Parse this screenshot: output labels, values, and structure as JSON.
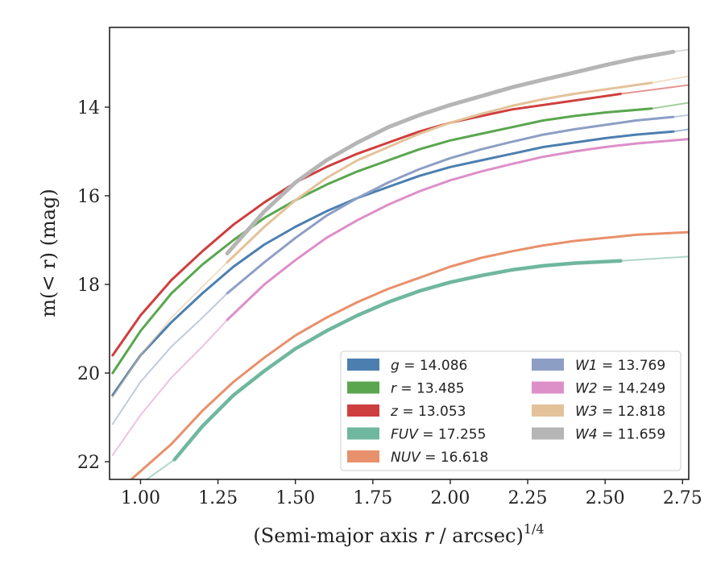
{
  "chart_data": {
    "type": "line",
    "title": "",
    "xlabel": "(Semi-major axis r / arcsec)",
    "xlabel_italic_part": "r",
    "xlabel_exponent": "1/4",
    "ylabel": "m(< r) (mag)",
    "xlim": [
      0.9,
      2.77
    ],
    "ylim": [
      22.4,
      12.2
    ],
    "y_inverted": true,
    "x_ticks": [
      1.0,
      1.25,
      1.5,
      1.75,
      2.0,
      2.25,
      2.5,
      2.75
    ],
    "x_tick_labels": [
      "1.00",
      "1.25",
      "1.50",
      "1.75",
      "2.00",
      "2.25",
      "2.50",
      "2.75"
    ],
    "y_ticks": [
      14,
      16,
      18,
      20,
      22
    ],
    "y_tick_labels": [
      "14",
      "16",
      "18",
      "20",
      "22"
    ],
    "grid": false,
    "legend_placement": "lower-right",
    "legend_columns": 2,
    "series": [
      {
        "name": "g = 14.086",
        "label_var": "g",
        "label_val": "= 14.086",
        "color": "#4c7fb0",
        "x": [
          0.91,
          1.0,
          1.1,
          1.2,
          1.3,
          1.4,
          1.5,
          1.6,
          1.7,
          1.8,
          1.9,
          2.0,
          2.1,
          2.2,
          2.3,
          2.4,
          2.5,
          2.6,
          2.72
        ],
        "y": [
          20.5,
          19.6,
          18.85,
          18.2,
          17.6,
          17.1,
          16.7,
          16.35,
          16.05,
          15.8,
          15.55,
          15.35,
          15.2,
          15.05,
          14.9,
          14.8,
          14.7,
          14.62,
          14.55
        ],
        "ext_x": [
          2.72,
          2.77
        ],
        "ext_y": [
          14.55,
          14.5
        ]
      },
      {
        "name": "r = 13.485",
        "label_var": "r",
        "label_val": "= 13.485",
        "color": "#5aa64f",
        "x": [
          0.91,
          1.0,
          1.1,
          1.2,
          1.3,
          1.4,
          1.5,
          1.6,
          1.7,
          1.8,
          1.9,
          2.0,
          2.1,
          2.2,
          2.3,
          2.4,
          2.5,
          2.65
        ],
        "y": [
          20.0,
          19.05,
          18.2,
          17.55,
          17.0,
          16.5,
          16.1,
          15.75,
          15.45,
          15.2,
          14.95,
          14.75,
          14.6,
          14.45,
          14.3,
          14.2,
          14.12,
          14.03
        ],
        "ext_x": [
          2.65,
          2.77
        ],
        "ext_y": [
          14.03,
          13.9
        ]
      },
      {
        "name": "z = 13.053",
        "label_var": "z",
        "label_val": "= 13.053",
        "color": "#cf3e3e",
        "x": [
          0.91,
          1.0,
          1.1,
          1.2,
          1.3,
          1.4,
          1.5,
          1.6,
          1.7,
          1.8,
          1.9,
          2.0,
          2.1,
          2.2,
          2.3,
          2.4,
          2.5,
          2.55
        ],
        "y": [
          19.6,
          18.7,
          17.9,
          17.25,
          16.65,
          16.15,
          15.7,
          15.35,
          15.05,
          14.8,
          14.55,
          14.35,
          14.2,
          14.05,
          13.95,
          13.85,
          13.75,
          13.7
        ],
        "ext_x": [
          2.55,
          2.77
        ],
        "ext_y": [
          13.7,
          13.5
        ]
      },
      {
        "name": "FUV = 17.255",
        "label_var": "FUV",
        "label_val": "= 17.255",
        "color": "#6fb79f",
        "x": [
          1.11,
          1.2,
          1.3,
          1.4,
          1.5,
          1.6,
          1.7,
          1.8,
          1.9,
          2.0,
          2.1,
          2.2,
          2.3,
          2.4,
          2.55
        ],
        "y": [
          21.95,
          21.2,
          20.5,
          19.95,
          19.45,
          19.05,
          18.7,
          18.4,
          18.15,
          17.95,
          17.8,
          17.67,
          17.58,
          17.52,
          17.47
        ],
        "ext_x": [
          2.55,
          2.77
        ],
        "ext_y": [
          17.47,
          17.37
        ],
        "pre_x": [
          1.02,
          1.11
        ],
        "pre_y": [
          22.4,
          21.95
        ]
      },
      {
        "name": "NUV = 16.618",
        "label_var": "NUV",
        "label_val": "= 16.618",
        "color": "#e8906c",
        "x": [
          0.97,
          1.1,
          1.2,
          1.3,
          1.4,
          1.5,
          1.6,
          1.7,
          1.8,
          1.9,
          2.0,
          2.1,
          2.2,
          2.3,
          2.4,
          2.5,
          2.6,
          2.77
        ],
        "y": [
          22.4,
          21.6,
          20.85,
          20.2,
          19.65,
          19.15,
          18.75,
          18.4,
          18.1,
          17.85,
          17.6,
          17.4,
          17.25,
          17.12,
          17.02,
          16.95,
          16.88,
          16.82
        ]
      },
      {
        "name": "W1 = 13.769",
        "label_var": "W1",
        "label_val": "= 13.769",
        "color": "#8d9ec5",
        "x": [
          1.28,
          1.4,
          1.5,
          1.6,
          1.7,
          1.8,
          1.9,
          2.0,
          2.1,
          2.2,
          2.3,
          2.4,
          2.5,
          2.6,
          2.72
        ],
        "y": [
          18.2,
          17.5,
          16.95,
          16.45,
          16.05,
          15.7,
          15.4,
          15.15,
          14.95,
          14.78,
          14.62,
          14.5,
          14.4,
          14.3,
          14.22
        ],
        "pre_x": [
          0.91,
          1.0,
          1.1,
          1.2,
          1.28
        ],
        "pre_y": [
          21.15,
          20.2,
          19.4,
          18.75,
          18.2
        ],
        "ext_x": [
          2.72,
          2.77
        ],
        "ext_y": [
          14.22,
          14.18
        ]
      },
      {
        "name": "W2 = 14.249",
        "label_var": "W2",
        "label_val": "= 14.249",
        "color": "#dd8fc8",
        "x": [
          1.28,
          1.4,
          1.5,
          1.6,
          1.7,
          1.8,
          1.9,
          2.0,
          2.1,
          2.2,
          2.3,
          2.4,
          2.5,
          2.6,
          2.77
        ],
        "y": [
          18.8,
          18.0,
          17.45,
          16.95,
          16.55,
          16.2,
          15.9,
          15.65,
          15.45,
          15.28,
          15.12,
          15.0,
          14.9,
          14.82,
          14.72
        ],
        "pre_x": [
          0.91,
          1.0,
          1.1,
          1.2,
          1.28
        ],
        "pre_y": [
          21.85,
          20.95,
          20.1,
          19.4,
          18.8
        ]
      },
      {
        "name": "W3 = 12.818",
        "label_var": "W3",
        "label_val": "= 12.818",
        "color": "#e3c29a",
        "x": [
          1.28,
          1.4,
          1.5,
          1.6,
          1.7,
          1.8,
          1.9,
          2.0,
          2.1,
          2.2,
          2.3,
          2.4,
          2.5,
          2.6,
          2.65
        ],
        "y": [
          17.5,
          16.7,
          16.1,
          15.6,
          15.2,
          14.9,
          14.6,
          14.35,
          14.15,
          13.97,
          13.82,
          13.7,
          13.6,
          13.5,
          13.45
        ],
        "pre_x": [
          0.91,
          1.0,
          1.1,
          1.2,
          1.28
        ],
        "pre_y": [
          20.55,
          19.6,
          18.75,
          18.05,
          17.5
        ],
        "ext_x": [
          2.65,
          2.77
        ],
        "ext_y": [
          13.45,
          13.3
        ]
      },
      {
        "name": "W4 = 11.659",
        "label_var": "W4",
        "label_val": "= 11.659",
        "color": "#b5b5b5",
        "x": [
          1.28,
          1.4,
          1.5,
          1.6,
          1.7,
          1.8,
          1.9,
          2.0,
          2.1,
          2.2,
          2.3,
          2.4,
          2.5,
          2.6,
          2.72
        ],
        "y": [
          17.3,
          16.35,
          15.7,
          15.2,
          14.8,
          14.45,
          14.18,
          13.95,
          13.75,
          13.55,
          13.38,
          13.22,
          13.05,
          12.9,
          12.75
        ],
        "ext_x": [
          2.72,
          2.77
        ],
        "ext_y": [
          12.75,
          12.7
        ]
      }
    ]
  }
}
